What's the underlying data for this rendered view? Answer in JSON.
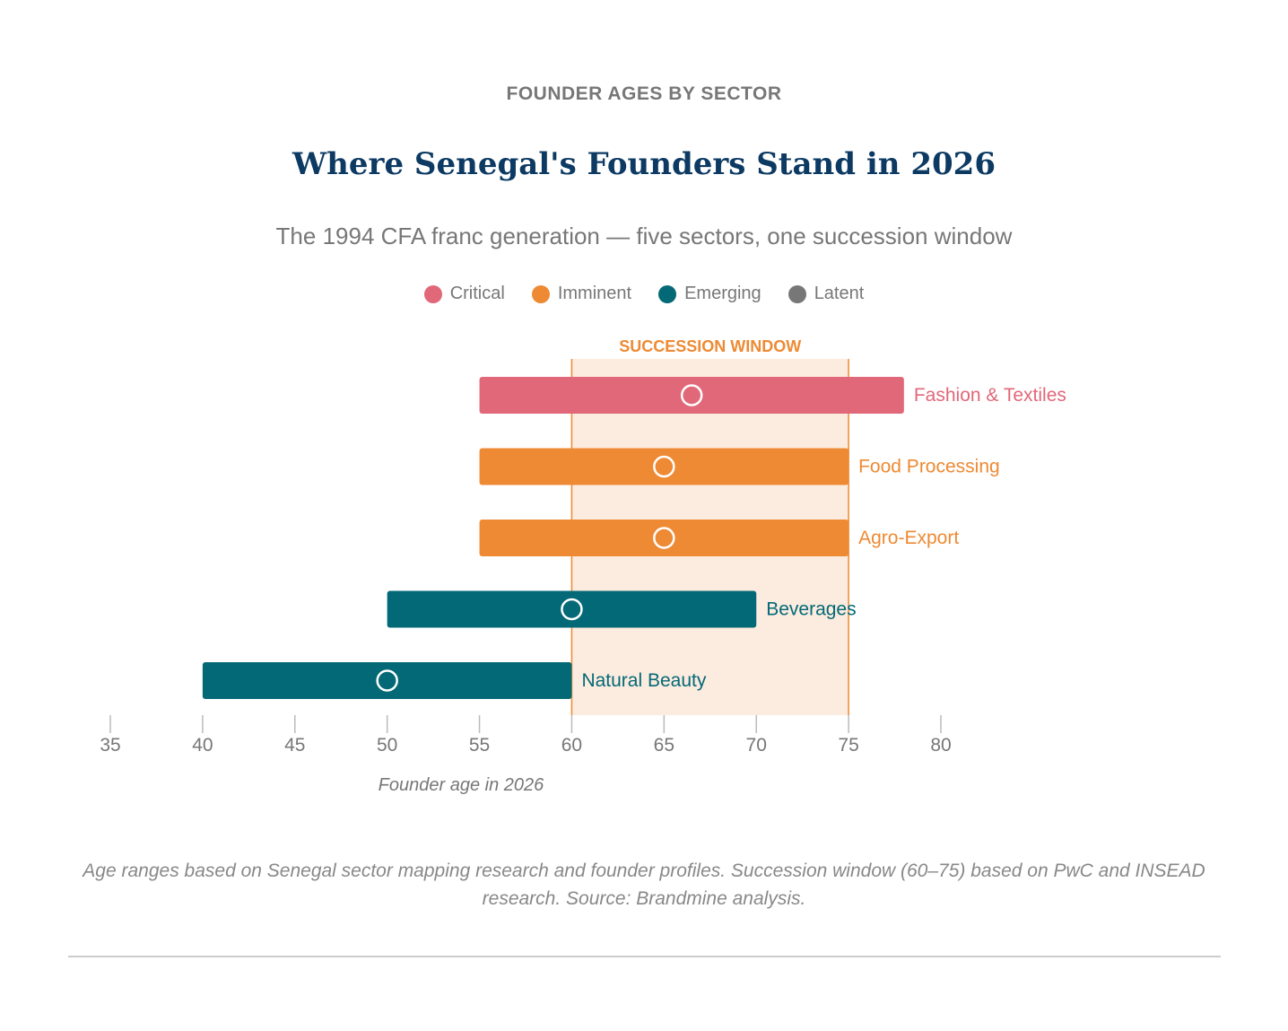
{
  "header": {
    "eyebrow": "FOUNDER AGES BY SECTOR",
    "title": "Where Senegal's Founders Stand in 2026",
    "subtitle": "The 1994 CFA franc generation — five sectors, one succession window"
  },
  "legend": [
    {
      "label": "Critical",
      "color": "#e06878"
    },
    {
      "label": "Imminent",
      "color": "#ee8a33"
    },
    {
      "label": "Emerging",
      "color": "#036976"
    },
    {
      "label": "Latent",
      "color": "#777777"
    }
  ],
  "chart_data": {
    "type": "bar",
    "orientation": "horizontal-range",
    "xlabel": "Founder age in 2026",
    "xlim": [
      35,
      80
    ],
    "xticks": [
      35,
      40,
      45,
      50,
      55,
      60,
      65,
      70,
      75,
      80
    ],
    "window": {
      "label": "SUCCESSION WINDOW",
      "start": 60,
      "end": 75,
      "color": "#ee8a33",
      "fill": "#fcebdf"
    },
    "series": [
      {
        "category": "Fashion & Textiles",
        "start": 55,
        "end": 78,
        "marker": 66.5,
        "status": "Critical",
        "color": "#e06878"
      },
      {
        "category": "Food Processing",
        "start": 55,
        "end": 75,
        "marker": 65,
        "status": "Imminent",
        "color": "#ee8a33"
      },
      {
        "category": "Agro-Export",
        "start": 55,
        "end": 75,
        "marker": 65,
        "status": "Imminent",
        "color": "#ee8a33"
      },
      {
        "category": "Beverages",
        "start": 50,
        "end": 70,
        "marker": 60,
        "status": "Emerging",
        "color": "#036976"
      },
      {
        "category": "Natural Beauty",
        "start": 40,
        "end": 60,
        "marker": 50,
        "status": "Emerging",
        "color": "#036976"
      }
    ]
  },
  "footnote": "Age ranges based on Senegal sector mapping research and founder profiles. Succession window (60–75) based on PwC and INSEAD research. Source: Brandmine analysis."
}
